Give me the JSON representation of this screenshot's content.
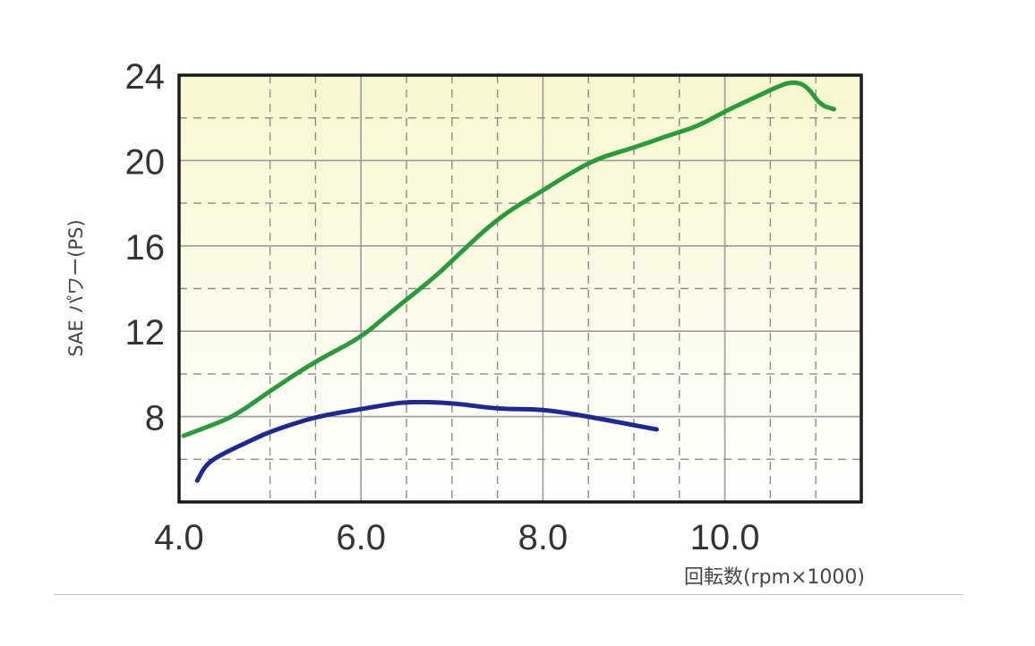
{
  "chart_data": {
    "type": "line",
    "xlabel": "回転数(rpm×1000)",
    "ylabel": "SAE パワー(PS)",
    "xlim": [
      4.0,
      11.5
    ],
    "ylim": [
      4,
      24
    ],
    "xticks": [
      4.0,
      6.0,
      8.0,
      10.0
    ],
    "xtick_labels": [
      "4.0",
      "6.0",
      "8.0",
      "10.0"
    ],
    "yticks": [
      8,
      12,
      16,
      20,
      24
    ],
    "ytick_labels": [
      "8",
      "12",
      "16",
      "20",
      "24"
    ],
    "grid": true,
    "series": [
      {
        "color": "#2a9a3c",
        "x": [
          4.05,
          4.3,
          4.6,
          5.0,
          5.5,
          6.0,
          6.3,
          6.8,
          7.0,
          7.5,
          8.0,
          8.3,
          8.6,
          9.0,
          9.4,
          9.7,
          10.0,
          10.3,
          10.6,
          10.75,
          10.9,
          11.05,
          11.2
        ],
        "y": [
          7.1,
          7.5,
          8.0,
          9.2,
          10.6,
          11.7,
          12.8,
          14.5,
          15.3,
          17.3,
          18.6,
          19.4,
          20.1,
          20.6,
          21.2,
          21.6,
          22.3,
          22.9,
          23.5,
          23.7,
          23.5,
          22.6,
          22.4
        ]
      },
      {
        "color": "#1c2a8e",
        "x": [
          4.2,
          4.3,
          4.5,
          4.8,
          5.0,
          5.5,
          6.0,
          6.2,
          6.5,
          7.0,
          7.5,
          8.0,
          8.5,
          9.0,
          9.25
        ],
        "y": [
          5.0,
          5.8,
          6.3,
          6.9,
          7.3,
          8.0,
          8.35,
          8.5,
          8.7,
          8.65,
          8.35,
          8.35,
          8.0,
          7.6,
          7.4
        ]
      }
    ]
  }
}
